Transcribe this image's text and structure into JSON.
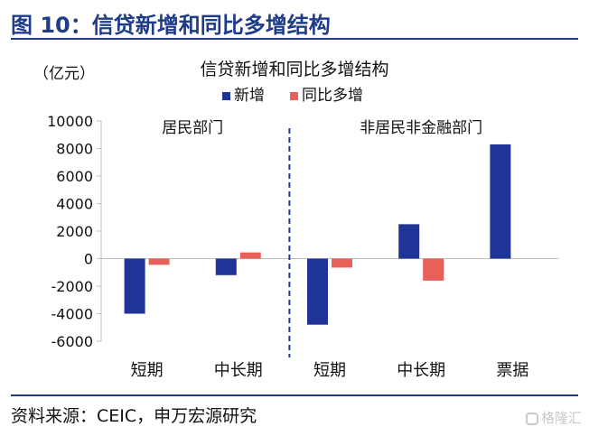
{
  "figure": {
    "title": "图 10：信贷新增和同比多增结构",
    "source": "资料来源：CEIC，申万宏源研究",
    "watermark": "格隆汇"
  },
  "colors": {
    "new_increase": "#1f3497",
    "yoy_more": "#e8605a",
    "header": "#1f3c88"
  },
  "chart_data": {
    "type": "bar",
    "title": "信贷新增和同比多增结构",
    "unit_label": "（亿元）",
    "categories": [
      "短期",
      "中长期",
      "短期",
      "中长期",
      "票据"
    ],
    "groups": [
      {
        "label": "居民部门",
        "categories": [
          "短期",
          "中长期"
        ]
      },
      {
        "label": "非居民非金融部门",
        "categories": [
          "短期",
          "中长期",
          "票据"
        ]
      }
    ],
    "series": [
      {
        "name": "新增",
        "values": [
          -4000,
          -1200,
          -4800,
          2500,
          8300
        ]
      },
      {
        "name": "同比多增",
        "values": [
          -450,
          450,
          -650,
          -1600,
          null
        ]
      }
    ],
    "ylim": [
      -6000,
      10000
    ],
    "yticks": [
      "10000",
      "8000",
      "6000",
      "4000",
      "2000",
      "0",
      "-2000",
      "-4000",
      "-6000"
    ],
    "grid": false,
    "legend_position": "top-center"
  }
}
